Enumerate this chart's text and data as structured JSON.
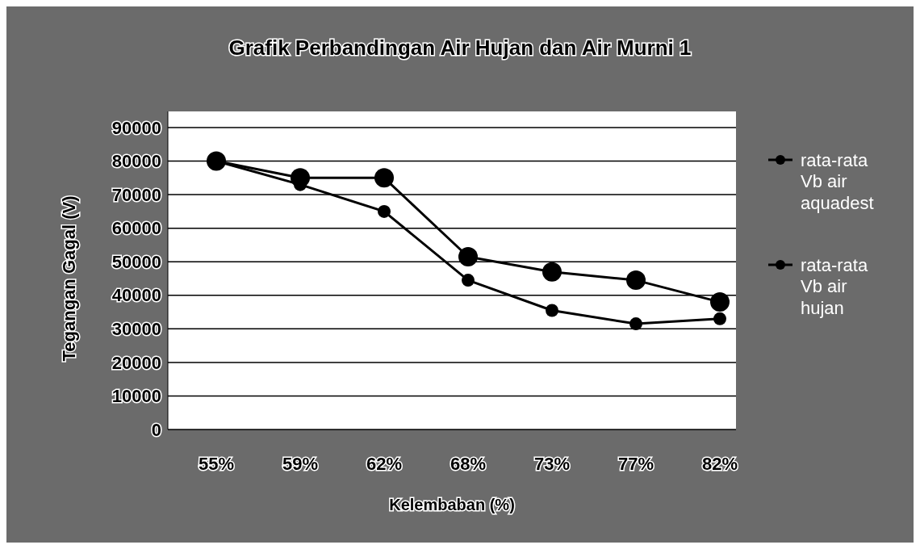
{
  "chart_data": {
    "type": "line",
    "title": "Grafik Perbandingan Air Hujan dan Air Murni 1",
    "xlabel": "Kelembaban (%)",
    "ylabel": "Tegangan Gagal (V)",
    "categories": [
      "55%",
      "59%",
      "62%",
      "68%",
      "73%",
      "77%",
      "82%"
    ],
    "series": [
      {
        "name": "rata-rata Vb air aquadest",
        "color": "#000000",
        "values": [
          80000,
          75000,
          75000,
          51500,
          47000,
          44500,
          38000
        ]
      },
      {
        "name": "rata-rata Vb air hujan",
        "color": "#000000",
        "values": [
          80000,
          73000,
          65000,
          44500,
          35500,
          31500,
          33000
        ]
      }
    ],
    "ylim": [
      0,
      90000
    ],
    "yticks": [
      0,
      10000,
      20000,
      30000,
      40000,
      50000,
      60000,
      70000,
      80000,
      90000
    ],
    "grid": "y",
    "legend": "right",
    "marker": "circle",
    "line_style": "solid"
  }
}
